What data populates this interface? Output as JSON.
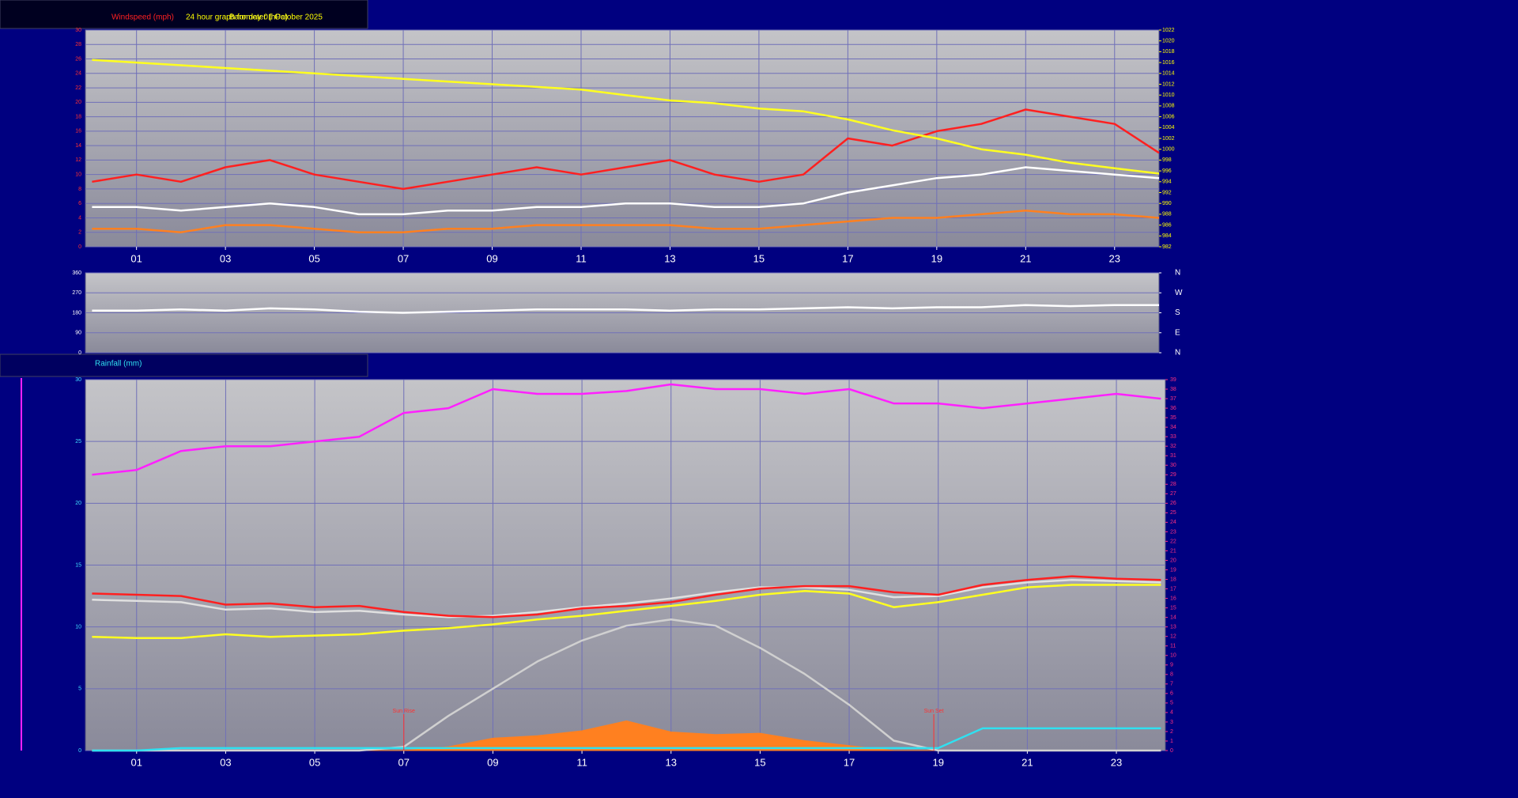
{
  "chart_data": [
    {
      "type": "line",
      "title": "24 hour graph for day 01 October 2025",
      "x": [
        0,
        1,
        2,
        3,
        4,
        5,
        6,
        7,
        8,
        9,
        10,
        11,
        12,
        13,
        14,
        15,
        16,
        17,
        18,
        19,
        20,
        21,
        22,
        23,
        24
      ],
      "xlim": [
        -0.15,
        24
      ],
      "xticks": [
        {
          "value": 1,
          "label": "01"
        },
        {
          "value": 3,
          "label": "03"
        },
        {
          "value": 5,
          "label": "05"
        },
        {
          "value": 7,
          "label": "07"
        },
        {
          "value": 9,
          "label": "09"
        },
        {
          "value": 11,
          "label": "11"
        },
        {
          "value": 13,
          "label": "13"
        },
        {
          "value": 15,
          "label": "15"
        },
        {
          "value": 17,
          "label": "17"
        },
        {
          "value": 19,
          "label": "19"
        },
        {
          "value": 21,
          "label": "21"
        },
        {
          "value": 23,
          "label": "23"
        }
      ],
      "ylim": [
        0,
        30
      ],
      "yticks": [
        0,
        2,
        4,
        6,
        8,
        10,
        12,
        14,
        16,
        18,
        20,
        22,
        24,
        26,
        28,
        30
      ],
      "ytick_color": "#ff3030",
      "y2lim": [
        982,
        1022
      ],
      "y2ticks": [
        982,
        984,
        986,
        988,
        990,
        992,
        994,
        996,
        998,
        1000,
        1002,
        1004,
        1006,
        1008,
        1010,
        1012,
        1014,
        1016,
        1018,
        1020,
        1022
      ],
      "y2tick_color": "#ffff00",
      "grid": true,
      "series": [
        {
          "color": "#ff8020",
          "values": [
            2.5,
            2.5,
            2,
            3,
            3,
            2.5,
            2,
            2,
            2.5,
            2.5,
            3,
            3,
            3,
            3,
            2.5,
            2.5,
            3,
            3.5,
            4,
            4,
            4.5,
            5,
            4.5,
            4.5,
            4
          ]
        },
        {
          "name": "Windspeed (mph)",
          "color": "#ff2020",
          "values": [
            9,
            10,
            9,
            11,
            12,
            10,
            9,
            8,
            9,
            10,
            11,
            10,
            11,
            12,
            10,
            9,
            10,
            15,
            14,
            16,
            17,
            19,
            18,
            17,
            13
          ]
        },
        {
          "color": "#ffffff",
          "values": [
            5.5,
            5.5,
            5,
            5.5,
            6,
            5.5,
            4.5,
            4.5,
            5,
            5,
            5.5,
            5.5,
            6,
            6,
            5.5,
            5.5,
            6,
            7.5,
            8.5,
            9.5,
            10,
            11,
            10.5,
            10,
            9.5
          ]
        },
        {
          "name": "Barometer (hPa)",
          "color": "#ffff20",
          "axis": "y2",
          "values": [
            1016.5,
            1016,
            1015.5,
            1015,
            1014.5,
            1014,
            1013.5,
            1013,
            1012.5,
            1012,
            1011.5,
            1011,
            1010,
            1009,
            1008.5,
            1007.5,
            1007,
            1005.5,
            1003.5,
            1002,
            1000,
            999,
            997.5,
            996.5,
            995.5
          ]
        }
      ]
    },
    {
      "type": "line",
      "x": [
        0,
        1,
        2,
        3,
        4,
        5,
        6,
        7,
        8,
        9,
        10,
        11,
        12,
        13,
        14,
        15,
        16,
        17,
        18,
        19,
        20,
        21,
        22,
        23,
        24
      ],
      "xlim": [
        -0.15,
        24
      ],
      "ylim": [
        0,
        360
      ],
      "yticks": [
        0,
        90,
        180,
        270,
        360
      ],
      "ytick_color": "#ffffff",
      "y2lim": [
        0,
        360
      ],
      "y2ticks": [
        {
          "value": 360,
          "label": "N"
        },
        {
          "value": 270,
          "label": "W"
        },
        {
          "value": 180,
          "label": "S"
        },
        {
          "value": 90,
          "label": "E"
        },
        {
          "value": 0,
          "label": "N"
        }
      ],
      "y2tick_color": "#ffffff",
      "grid": true,
      "series": [
        {
          "color": "#ffffff",
          "values": [
            190,
            190,
            195,
            190,
            200,
            195,
            185,
            180,
            185,
            190,
            195,
            195,
            195,
            190,
            195,
            195,
            200,
            205,
            200,
            205,
            205,
            215,
            210,
            215,
            215
          ]
        }
      ]
    },
    {
      "type": "line",
      "x": [
        0,
        1,
        2,
        3,
        4,
        5,
        6,
        7,
        8,
        9,
        10,
        11,
        12,
        13,
        14,
        15,
        16,
        17,
        18,
        19,
        20,
        21,
        22,
        23,
        24
      ],
      "xlim": [
        -0.15,
        24.1
      ],
      "xticks": [
        {
          "value": 1,
          "label": "01"
        },
        {
          "value": 3,
          "label": "03"
        },
        {
          "value": 5,
          "label": "05"
        },
        {
          "value": 7,
          "label": "07"
        },
        {
          "value": 9,
          "label": "09"
        },
        {
          "value": 11,
          "label": "11"
        },
        {
          "value": 13,
          "label": "13"
        },
        {
          "value": 15,
          "label": "15"
        },
        {
          "value": 17,
          "label": "17"
        },
        {
          "value": 19,
          "label": "19"
        },
        {
          "value": 21,
          "label": "21"
        },
        {
          "value": 23,
          "label": "23"
        }
      ],
      "ylim": [
        0,
        30
      ],
      "yticks": [
        0,
        5,
        10,
        15,
        20,
        25,
        30
      ],
      "ytick_color": "#40e0ff",
      "y2lim": [
        0,
        39
      ],
      "y2ticks": [
        0,
        1,
        2,
        3,
        4,
        5,
        6,
        7,
        8,
        9,
        10,
        11,
        12,
        13,
        14,
        15,
        16,
        17,
        18,
        19,
        20,
        21,
        22,
        23,
        24,
        25,
        26,
        27,
        28,
        29,
        30,
        31,
        32,
        33,
        34,
        35,
        36,
        37,
        38,
        39
      ],
      "y2tick_color": "#ff3080",
      "grid": true,
      "annotations": [
        {
          "text": "Sun Rise",
          "x": 7
        },
        {
          "text": "Sun Set",
          "x": 18.9
        }
      ],
      "series": [
        {
          "color": "#ff8020",
          "area": true,
          "values": [
            0,
            0,
            0,
            0,
            0,
            0,
            0,
            0,
            0.3,
            1,
            1.2,
            1.6,
            2.4,
            1.5,
            1.3,
            1.4,
            0.8,
            0.4,
            0,
            0,
            0,
            0,
            0,
            0,
            0
          ]
        },
        {
          "color": "#d0d0d0",
          "values": [
            0,
            0,
            0,
            0,
            0,
            0,
            0,
            0.3,
            2.8,
            5.0,
            7.2,
            8.9,
            10.1,
            10.6,
            10.1,
            8.3,
            6.2,
            3.7,
            0.8,
            0,
            0,
            0,
            0,
            0,
            0
          ]
        },
        {
          "name": "Rainfall (mm)",
          "color": "#30e0f0",
          "values": [
            0,
            0,
            0.2,
            0.2,
            0.2,
            0.2,
            0.2,
            0.2,
            0.2,
            0.2,
            0.2,
            0.2,
            0.2,
            0.2,
            0.2,
            0.2,
            0.2,
            0.2,
            0.2,
            0.2,
            1.8,
            1.8,
            1.8,
            1.8,
            1.8
          ]
        },
        {
          "color": "#ff20ff",
          "axis": "y2",
          "values": [
            29,
            29.5,
            31.5,
            32,
            32,
            32.5,
            33,
            35.5,
            36,
            38,
            37.5,
            37.5,
            37.8,
            38.5,
            38,
            38,
            37.5,
            38,
            36.5,
            36.5,
            36,
            36.5,
            37,
            37.5,
            37
          ]
        },
        {
          "color": "#ffff20",
          "values": [
            9.2,
            9.1,
            9.1,
            9.4,
            9.2,
            9.3,
            9.4,
            9.7,
            9.9,
            10.2,
            10.6,
            10.9,
            11.3,
            11.7,
            12.1,
            12.6,
            12.9,
            12.7,
            11.6,
            12.0,
            12.6,
            13.2,
            13.4,
            13.4,
            13.4
          ]
        },
        {
          "color": "#e0e0e0",
          "values": [
            12.2,
            12.1,
            12.0,
            11.4,
            11.5,
            11.2,
            11.3,
            11.0,
            10.8,
            10.9,
            11.2,
            11.6,
            11.9,
            12.3,
            12.8,
            13.2,
            13.2,
            13.0,
            12.4,
            12.5,
            13.2,
            13.6,
            13.8,
            13.7,
            13.6
          ]
        },
        {
          "color": "#ff2020",
          "values": [
            12.7,
            12.6,
            12.5,
            11.8,
            11.9,
            11.6,
            11.7,
            11.2,
            10.9,
            10.8,
            11.0,
            11.5,
            11.7,
            12.0,
            12.6,
            13.1,
            13.3,
            13.3,
            12.8,
            12.6,
            13.4,
            13.8,
            14.1,
            13.9,
            13.8
          ]
        }
      ]
    }
  ]
}
